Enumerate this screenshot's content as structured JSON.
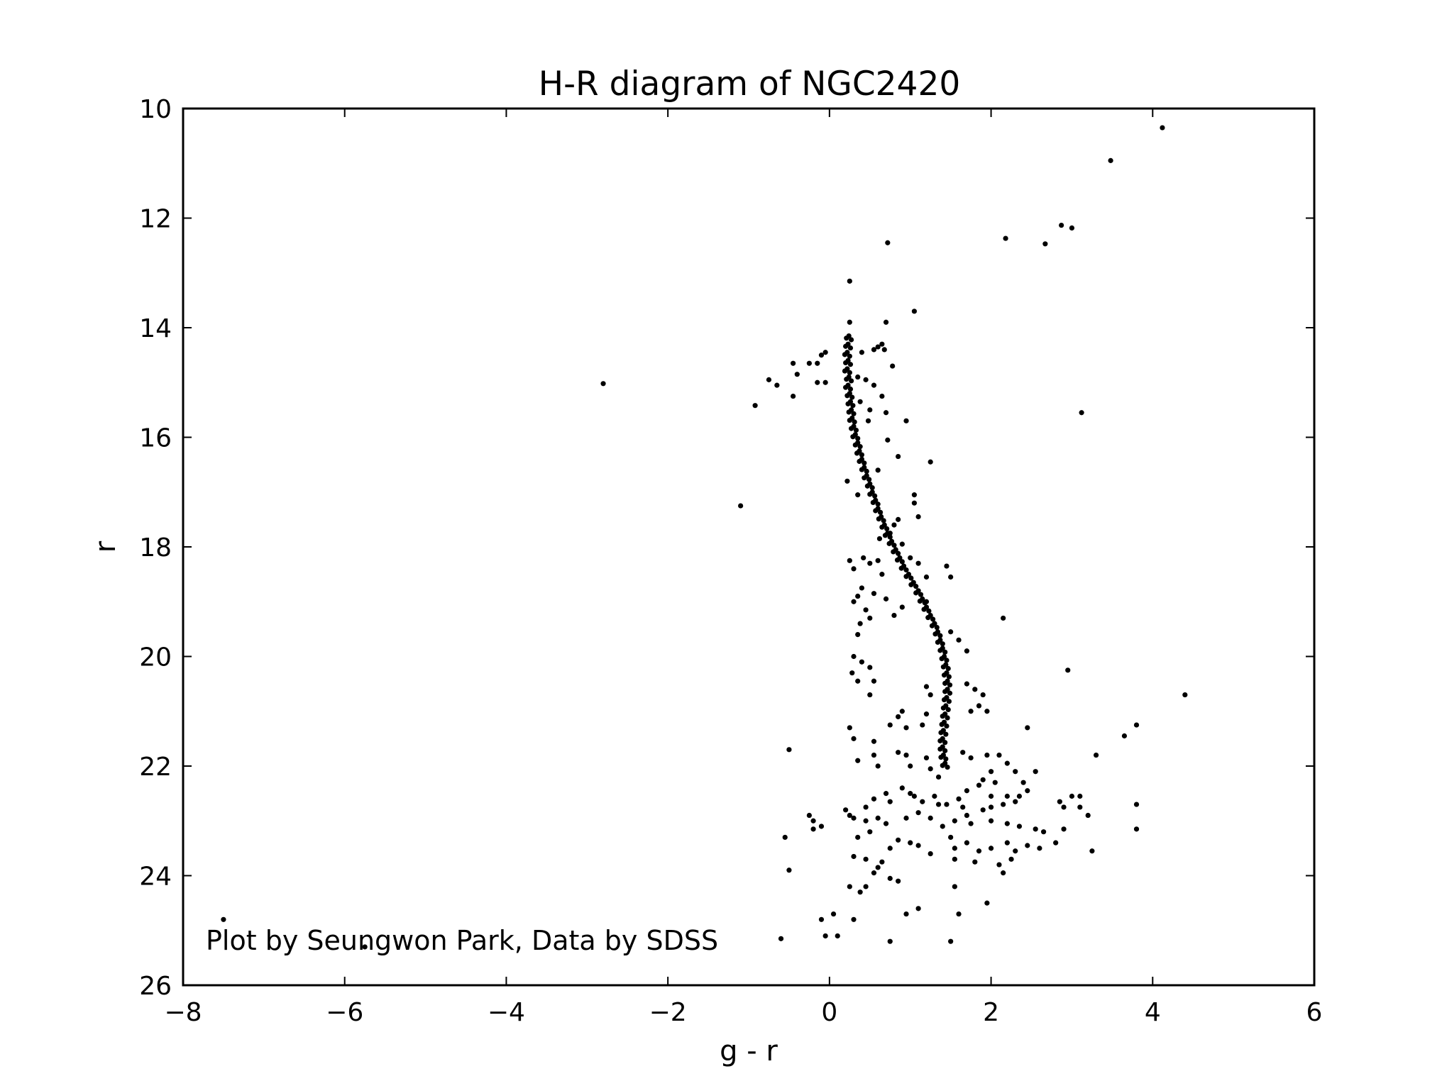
{
  "chart_data": {
    "type": "scatter",
    "title": "H-R diagram of NGC2420",
    "xlabel": "g - r",
    "ylabel": "r",
    "xlim": [
      -8,
      6
    ],
    "ylim": [
      26,
      10
    ],
    "y_inverted": true,
    "x_ticks": [
      "−8",
      "−6",
      "−4",
      "−2",
      "0",
      "2",
      "4",
      "6"
    ],
    "x_tick_values": [
      -8,
      -6,
      -4,
      -2,
      0,
      2,
      4,
      6
    ],
    "y_ticks": [
      "10",
      "12",
      "14",
      "16",
      "18",
      "20",
      "22",
      "24",
      "26"
    ],
    "y_tick_values": [
      10,
      12,
      14,
      16,
      18,
      20,
      22,
      24,
      26
    ],
    "grid": false,
    "marker_color": "#000000",
    "annotation": "Plot by Seungwon Park, Data by SDSS",
    "points": [
      [
        4.12,
        10.35
      ],
      [
        3.48,
        10.95
      ],
      [
        2.87,
        12.13
      ],
      [
        3.0,
        12.18
      ],
      [
        2.18,
        12.37
      ],
      [
        2.67,
        12.47
      ],
      [
        0.72,
        12.45
      ],
      [
        0.25,
        13.15
      ],
      [
        1.05,
        13.7
      ],
      [
        0.25,
        13.9
      ],
      [
        0.7,
        13.9
      ],
      [
        0.6,
        14.35
      ],
      [
        0.65,
        14.3
      ],
      [
        0.68,
        14.4
      ],
      [
        0.55,
        14.4
      ],
      [
        0.4,
        14.45
      ],
      [
        0.78,
        14.7
      ],
      [
        -0.05,
        14.45
      ],
      [
        -0.1,
        14.5
      ],
      [
        -0.15,
        14.65
      ],
      [
        -0.25,
        14.65
      ],
      [
        -0.45,
        14.65
      ],
      [
        -0.4,
        14.85
      ],
      [
        -0.75,
        14.95
      ],
      [
        -0.65,
        15.05
      ],
      [
        -0.15,
        15.0
      ],
      [
        -0.05,
        15.0
      ],
      [
        -0.45,
        15.25
      ],
      [
        -0.92,
        15.42
      ],
      [
        -2.8,
        15.02
      ],
      [
        0.35,
        14.9
      ],
      [
        0.45,
        14.95
      ],
      [
        0.55,
        15.05
      ],
      [
        0.65,
        15.25
      ],
      [
        0.38,
        15.35
      ],
      [
        0.5,
        15.5
      ],
      [
        0.48,
        15.7
      ],
      [
        0.7,
        15.55
      ],
      [
        0.95,
        15.7
      ],
      [
        0.72,
        16.05
      ],
      [
        0.85,
        16.35
      ],
      [
        1.25,
        16.45
      ],
      [
        0.6,
        16.6
      ],
      [
        1.05,
        17.05
      ],
      [
        3.12,
        15.55
      ],
      [
        0.22,
        16.8
      ],
      [
        0.35,
        17.05
      ],
      [
        -1.1,
        17.25
      ],
      [
        1.05,
        17.2
      ],
      [
        1.1,
        17.45
      ],
      [
        0.85,
        17.5
      ],
      [
        0.8,
        17.6
      ],
      [
        0.75,
        17.75
      ],
      [
        0.62,
        17.85
      ],
      [
        0.9,
        17.95
      ],
      [
        0.25,
        18.25
      ],
      [
        0.3,
        18.4
      ],
      [
        0.42,
        18.2
      ],
      [
        0.5,
        18.3
      ],
      [
        0.6,
        18.25
      ],
      [
        0.65,
        18.5
      ],
      [
        1.0,
        18.2
      ],
      [
        1.1,
        18.3
      ],
      [
        1.2,
        18.55
      ],
      [
        1.45,
        18.35
      ],
      [
        1.5,
        18.55
      ],
      [
        0.4,
        18.75
      ],
      [
        0.35,
        18.9
      ],
      [
        0.55,
        18.85
      ],
      [
        0.7,
        18.95
      ],
      [
        0.3,
        19.0
      ],
      [
        0.45,
        19.15
      ],
      [
        0.5,
        19.3
      ],
      [
        0.38,
        19.4
      ],
      [
        0.35,
        19.6
      ],
      [
        0.8,
        19.25
      ],
      [
        0.9,
        19.1
      ],
      [
        1.2,
        19.0
      ],
      [
        1.3,
        19.4
      ],
      [
        1.5,
        19.55
      ],
      [
        1.6,
        19.7
      ],
      [
        2.15,
        19.3
      ],
      [
        1.7,
        19.9
      ],
      [
        0.3,
        20.0
      ],
      [
        0.4,
        20.1
      ],
      [
        0.5,
        20.2
      ],
      [
        0.28,
        20.3
      ],
      [
        0.35,
        20.45
      ],
      [
        0.55,
        20.45
      ],
      [
        0.5,
        20.7
      ],
      [
        0.9,
        21.0
      ],
      [
        0.95,
        21.3
      ],
      [
        0.85,
        21.1
      ],
      [
        0.75,
        21.25
      ],
      [
        0.25,
        21.3
      ],
      [
        0.3,
        21.5
      ],
      [
        0.55,
        21.55
      ],
      [
        2.95,
        20.25
      ],
      [
        4.4,
        20.7
      ],
      [
        3.8,
        21.25
      ],
      [
        3.65,
        21.45
      ],
      [
        2.45,
        21.3
      ],
      [
        1.2,
        20.55
      ],
      [
        1.25,
        20.7
      ],
      [
        1.7,
        20.5
      ],
      [
        1.8,
        20.6
      ],
      [
        1.9,
        20.7
      ],
      [
        1.85,
        20.9
      ],
      [
        1.75,
        21.0
      ],
      [
        1.95,
        21.0
      ],
      [
        1.2,
        21.05
      ],
      [
        1.15,
        21.25
      ],
      [
        0.55,
        21.8
      ],
      [
        0.35,
        21.9
      ],
      [
        0.6,
        22.0
      ],
      [
        0.85,
        21.75
      ],
      [
        0.95,
        21.8
      ],
      [
        1.0,
        22.0
      ],
      [
        1.2,
        21.85
      ],
      [
        1.25,
        22.05
      ],
      [
        1.35,
        22.2
      ],
      [
        1.65,
        21.75
      ],
      [
        1.75,
        21.85
      ],
      [
        1.95,
        21.8
      ],
      [
        2.1,
        21.8
      ],
      [
        2.2,
        21.95
      ],
      [
        2.0,
        22.1
      ],
      [
        1.9,
        22.25
      ],
      [
        1.85,
        22.35
      ],
      [
        1.7,
        22.45
      ],
      [
        2.05,
        22.3
      ],
      [
        2.3,
        22.1
      ],
      [
        2.55,
        22.1
      ],
      [
        2.4,
        22.3
      ],
      [
        2.45,
        22.45
      ],
      [
        2.2,
        22.55
      ],
      [
        2.0,
        22.55
      ],
      [
        -0.5,
        21.7
      ],
      [
        3.3,
        21.8
      ],
      [
        0.45,
        22.75
      ],
      [
        0.55,
        22.6
      ],
      [
        0.7,
        22.5
      ],
      [
        0.75,
        22.65
      ],
      [
        0.9,
        22.4
      ],
      [
        1.0,
        22.5
      ],
      [
        1.05,
        22.55
      ],
      [
        1.15,
        22.65
      ],
      [
        1.3,
        22.55
      ],
      [
        1.35,
        22.7
      ],
      [
        1.45,
        22.7
      ],
      [
        1.6,
        22.6
      ],
      [
        1.65,
        22.75
      ],
      [
        1.7,
        22.9
      ],
      [
        1.9,
        22.8
      ],
      [
        2.0,
        22.75
      ],
      [
        2.15,
        22.7
      ],
      [
        2.3,
        22.65
      ],
      [
        2.35,
        22.55
      ],
      [
        2.85,
        22.65
      ],
      [
        2.9,
        22.75
      ],
      [
        3.0,
        22.55
      ],
      [
        3.1,
        22.55
      ],
      [
        3.1,
        22.75
      ],
      [
        3.2,
        22.9
      ],
      [
        3.8,
        22.7
      ],
      [
        0.2,
        22.8
      ],
      [
        0.25,
        22.9
      ],
      [
        0.3,
        22.95
      ],
      [
        0.45,
        23.0
      ],
      [
        0.6,
        22.95
      ],
      [
        0.7,
        23.05
      ],
      [
        0.95,
        22.95
      ],
      [
        1.1,
        22.85
      ],
      [
        1.25,
        22.95
      ],
      [
        1.4,
        23.1
      ],
      [
        1.55,
        23.0
      ],
      [
        1.75,
        23.05
      ],
      [
        2.0,
        23.0
      ],
      [
        2.2,
        23.05
      ],
      [
        2.35,
        23.1
      ],
      [
        2.55,
        23.15
      ],
      [
        2.65,
        23.2
      ],
      [
        2.9,
        23.15
      ],
      [
        3.8,
        23.15
      ],
      [
        -0.25,
        22.9
      ],
      [
        -0.2,
        23.0
      ],
      [
        -0.2,
        23.15
      ],
      [
        -0.1,
        23.1
      ],
      [
        -0.55,
        23.3
      ],
      [
        -0.5,
        23.9
      ],
      [
        0.35,
        23.3
      ],
      [
        0.5,
        23.2
      ],
      [
        0.75,
        23.5
      ],
      [
        0.85,
        23.35
      ],
      [
        1.0,
        23.4
      ],
      [
        1.1,
        23.45
      ],
      [
        1.25,
        23.6
      ],
      [
        1.5,
        23.3
      ],
      [
        1.55,
        23.5
      ],
      [
        1.7,
        23.4
      ],
      [
        1.85,
        23.55
      ],
      [
        2.0,
        23.5
      ],
      [
        2.2,
        23.4
      ],
      [
        2.3,
        23.55
      ],
      [
        2.45,
        23.45
      ],
      [
        2.6,
        23.5
      ],
      [
        2.8,
        23.4
      ],
      [
        3.25,
        23.55
      ],
      [
        0.3,
        23.65
      ],
      [
        0.45,
        23.7
      ],
      [
        0.6,
        23.85
      ],
      [
        0.55,
        23.95
      ],
      [
        0.65,
        23.75
      ],
      [
        0.75,
        24.05
      ],
      [
        0.85,
        24.1
      ],
      [
        0.45,
        24.2
      ],
      [
        0.25,
        24.2
      ],
      [
        0.38,
        24.3
      ],
      [
        1.55,
        23.7
      ],
      [
        1.8,
        23.75
      ],
      [
        2.1,
        23.8
      ],
      [
        2.25,
        23.7
      ],
      [
        2.15,
        23.95
      ],
      [
        0.95,
        24.7
      ],
      [
        1.1,
        24.6
      ],
      [
        1.55,
        24.2
      ],
      [
        1.95,
        24.5
      ],
      [
        1.6,
        24.7
      ],
      [
        0.05,
        24.7
      ],
      [
        -0.1,
        24.8
      ],
      [
        0.3,
        24.8
      ],
      [
        0.1,
        25.1
      ],
      [
        -0.05,
        25.1
      ],
      [
        0.75,
        25.2
      ],
      [
        1.5,
        25.2
      ],
      [
        -7.5,
        24.8
      ],
      [
        -5.75,
        25.3
      ],
      [
        -0.6,
        25.15
      ]
    ],
    "main_sequence": [
      [
        0.24,
        14.15
      ],
      [
        0.23,
        14.3
      ],
      [
        0.22,
        14.45
      ],
      [
        0.23,
        14.6
      ],
      [
        0.22,
        14.75
      ],
      [
        0.24,
        14.9
      ],
      [
        0.23,
        15.05
      ],
      [
        0.25,
        15.2
      ],
      [
        0.26,
        15.35
      ],
      [
        0.27,
        15.5
      ],
      [
        0.28,
        15.65
      ],
      [
        0.3,
        15.8
      ],
      [
        0.32,
        15.95
      ],
      [
        0.35,
        16.1
      ],
      [
        0.37,
        16.25
      ],
      [
        0.4,
        16.4
      ],
      [
        0.43,
        16.55
      ],
      [
        0.46,
        16.7
      ],
      [
        0.5,
        16.85
      ],
      [
        0.53,
        17.0
      ],
      [
        0.57,
        17.15
      ],
      [
        0.6,
        17.3
      ],
      [
        0.64,
        17.45
      ],
      [
        0.68,
        17.6
      ],
      [
        0.72,
        17.75
      ],
      [
        0.77,
        17.9
      ],
      [
        0.82,
        18.05
      ],
      [
        0.87,
        18.2
      ],
      [
        0.92,
        18.35
      ],
      [
        0.98,
        18.5
      ],
      [
        1.04,
        18.65
      ],
      [
        1.1,
        18.8
      ],
      [
        1.15,
        18.95
      ],
      [
        1.2,
        19.1
      ],
      [
        1.25,
        19.25
      ],
      [
        1.3,
        19.4
      ],
      [
        1.34,
        19.55
      ],
      [
        1.37,
        19.7
      ],
      [
        1.4,
        19.85
      ],
      [
        1.42,
        20.0
      ],
      [
        1.44,
        20.15
      ],
      [
        1.45,
        20.3
      ],
      [
        1.46,
        20.45
      ],
      [
        1.46,
        20.6
      ],
      [
        1.45,
        20.75
      ],
      [
        1.44,
        20.9
      ],
      [
        1.43,
        21.05
      ],
      [
        1.42,
        21.2
      ],
      [
        1.41,
        21.35
      ],
      [
        1.4,
        21.5
      ],
      [
        1.4,
        21.65
      ],
      [
        1.41,
        21.8
      ],
      [
        1.43,
        21.95
      ]
    ]
  }
}
